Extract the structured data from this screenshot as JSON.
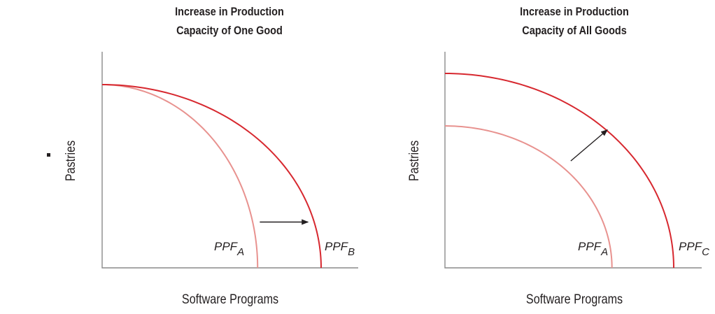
{
  "chart_data": [
    {
      "type": "line",
      "title_lines": [
        "Increase in Production",
        "Capacity of One Good"
      ],
      "xlabel": "Software Programs",
      "ylabel": "Pastries",
      "series": [
        {
          "name": "PPF",
          "subscript": "A",
          "x_intercept": 0.71,
          "y_intercept": 1.0,
          "color": "#e8928f"
        },
        {
          "name": "PPF",
          "subscript": "B",
          "x_intercept": 1.0,
          "y_intercept": 1.0,
          "color": "#d7282f"
        }
      ],
      "arrow": {
        "from": [
          0.72,
          0.25
        ],
        "to": [
          0.94,
          0.25
        ],
        "color": "#231f20"
      }
    },
    {
      "type": "line",
      "title_lines": [
        "Increase in Production",
        "Capacity of All Goods"
      ],
      "xlabel": "Software Programs",
      "ylabel": "Pastries",
      "series": [
        {
          "name": "PPF",
          "subscript": "A",
          "x_intercept": 0.73,
          "y_intercept": 0.73,
          "color": "#e8928f"
        },
        {
          "name": "PPF",
          "subscript": "C",
          "x_intercept": 1.0,
          "y_intercept": 1.0,
          "color": "#d7282f"
        }
      ],
      "arrow": {
        "from": [
          0.55,
          0.55
        ],
        "to": [
          0.71,
          0.71
        ],
        "color": "#231f20"
      }
    }
  ]
}
